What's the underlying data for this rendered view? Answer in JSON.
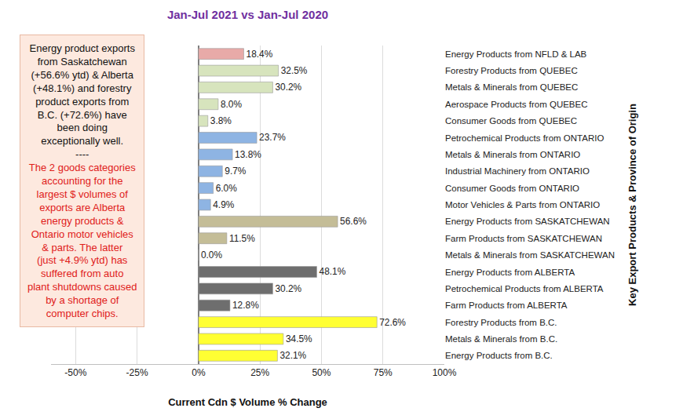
{
  "chart_data": {
    "type": "bar",
    "orientation": "horizontal",
    "title": "Jan-Jul 2021 vs Jan-Jul 2020",
    "x_label": "Current Cdn $ Volume % Change",
    "y_label": "Key Export Products & Province of Origin",
    "categories": [
      "Energy Products from NFLD & LAB",
      "Forestry Products from QUEBEC",
      "Metals & Minerals from QUEBEC",
      "Aerospace Products from QUEBEC",
      "Consumer Goods from QUEBEC",
      "Petrochemical Products from ONTARIO",
      "Metals & Minerals from ONTARIO",
      "Industrial Machinery from ONTARIO",
      "Consumer Goods from ONTARIO",
      "Motor Vehicles & Parts from ONTARIO",
      "Energy Products from SASKATCHEWAN",
      "Farm Products from SASKATCHEWAN",
      "Metals & Minerals from SASKATCHEWAN",
      "Energy Products from ALBERTA",
      "Petrochemical Products from ALBERTA",
      "Farm Products from ALBERTA",
      "Forestry Products from B.C.",
      "Metals & Minerals from B.C.",
      "Energy Products from B.C."
    ],
    "values": [
      18.4,
      32.5,
      30.2,
      8.0,
      3.8,
      23.7,
      13.8,
      9.7,
      6.0,
      4.9,
      56.6,
      11.5,
      0.0,
      48.1,
      30.2,
      12.8,
      72.6,
      34.5,
      32.1
    ],
    "value_labels": [
      "18.4%",
      "32.5%",
      "30.2%",
      "8.0%",
      "3.8%",
      "23.7%",
      "13.8%",
      "9.7%",
      "6.0%",
      "4.9%",
      "56.6%",
      "11.5%",
      "0.0%",
      "48.1%",
      "30.2%",
      "12.8%",
      "72.6%",
      "34.5%",
      "32.1%"
    ],
    "colors": [
      "#e8aaa8",
      "#d7e4bd",
      "#d7e4bd",
      "#d7e4bd",
      "#d7e4bd",
      "#8eb4e3",
      "#8eb4e3",
      "#8eb4e3",
      "#8eb4e3",
      "#8eb4e3",
      "#c4bd97",
      "#c4bd97",
      "#c4bd97",
      "#6e6e6e",
      "#6e6e6e",
      "#6e6e6e",
      "#ffff33",
      "#ffff33",
      "#ffff33"
    ],
    "xlim": [
      -60,
      100
    ],
    "xticks": [
      {
        "value": -50,
        "label": "-50%"
      },
      {
        "value": -25,
        "label": "-25%"
      },
      {
        "value": 0,
        "label": "0%"
      },
      {
        "value": 25,
        "label": "25%"
      },
      {
        "value": 50,
        "label": "50%"
      },
      {
        "value": 75,
        "label": "75%"
      },
      {
        "value": 100,
        "label": "100%"
      }
    ],
    "grid": true,
    "data_labels": true,
    "annotations": [
      "Energy product exports from Saskatchewan (+56.6% ytd) & Alberta (+48.1%) and forestry product exports from B.C. (+72.6%) have been doing exceptionally well.",
      "----",
      "The 2 goods categories accounting for the largest $ volumes of exports are Alberta energy products & Ontario motor vehicles & parts. The latter (just +4.9% ytd) has suffered from auto plant shutdowns caused by a shortage of computer chips."
    ]
  }
}
